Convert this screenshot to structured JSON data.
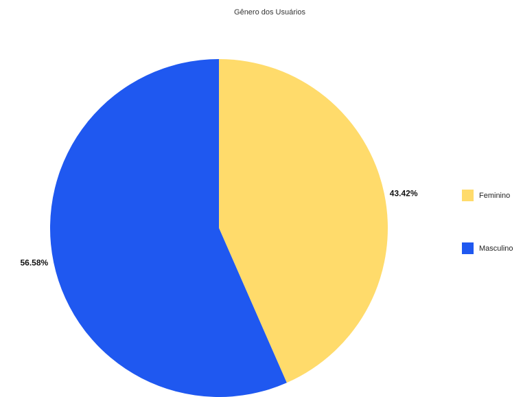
{
  "chart_data": {
    "type": "pie",
    "title": "Gênero dos Usuários",
    "legend_position": "right",
    "slices": [
      {
        "label": "Feminino",
        "value": 43.42,
        "value_label": "43.42%",
        "color": "#FFDB6B"
      },
      {
        "label": "Masculino",
        "value": 56.58,
        "value_label": "56.58%",
        "color": "#1F58F0"
      }
    ]
  }
}
